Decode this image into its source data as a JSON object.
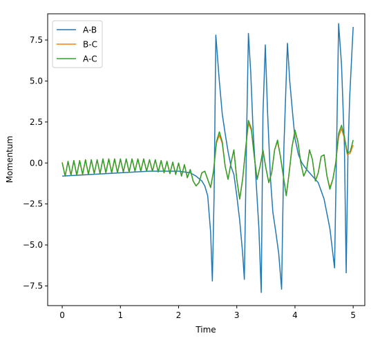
{
  "chart_data": {
    "type": "line",
    "xlabel": "Time",
    "ylabel": "Momentum",
    "xlim": [
      -0.25,
      5.2
    ],
    "ylim": [
      -8.7,
      9.1
    ],
    "xticks": [
      0,
      1,
      2,
      3,
      4,
      5
    ],
    "xtick_labels": [
      "0",
      "1",
      "2",
      "3",
      "4",
      "5"
    ],
    "yticks": [
      -7.5,
      -5.0,
      -2.5,
      0.0,
      2.5,
      5.0,
      7.5
    ],
    "ytick_labels": [
      "−7.5",
      "−5.0",
      "−2.5",
      "0.0",
      "2.5",
      "5.0",
      "7.5"
    ],
    "grid": false,
    "legend_position": "upper-left",
    "legend_order": [
      "A-B",
      "B-C",
      "A-C"
    ],
    "series": [
      {
        "name": "A-B",
        "color": "#1f77b4",
        "x": [
          0,
          0.5,
          1.0,
          1.5,
          2.0,
          2.2,
          2.3,
          2.4,
          2.45,
          2.5,
          2.55,
          2.58,
          2.61,
          2.64,
          2.7,
          2.75,
          2.8,
          2.85,
          2.9,
          2.95,
          3.0,
          3.05,
          3.1,
          3.13,
          3.17,
          3.2,
          3.24,
          3.28,
          3.33,
          3.38,
          3.42,
          3.45,
          3.49,
          3.53,
          3.58,
          3.62,
          3.67,
          3.72,
          3.77,
          3.81,
          3.87,
          3.91,
          3.96,
          4.0,
          4.06,
          4.12,
          4.2,
          4.3,
          4.4,
          4.5,
          4.6,
          4.68,
          4.72,
          4.75,
          4.8,
          4.85,
          4.88,
          4.91,
          4.94,
          5.0
        ],
        "y": [
          -0.8,
          -0.7,
          -0.6,
          -0.5,
          -0.5,
          -0.6,
          -0.8,
          -1.1,
          -1.4,
          -2.0,
          -4.2,
          -7.2,
          -2.0,
          7.8,
          5.0,
          3.0,
          1.8,
          0.7,
          -0.2,
          -0.7,
          -2.0,
          -3.5,
          -5.5,
          -7.1,
          2.0,
          7.9,
          5.5,
          2.0,
          -1.0,
          -4.0,
          -7.9,
          3.0,
          7.2,
          3.0,
          -1.0,
          -3.0,
          -4.2,
          -5.5,
          -7.7,
          1.0,
          7.3,
          5.0,
          3.0,
          1.5,
          0.5,
          0.0,
          -0.4,
          -0.8,
          -1.2,
          -2.2,
          -4.0,
          -6.4,
          2.0,
          8.5,
          6.0,
          1.0,
          -6.7,
          0.5,
          4.0,
          8.3
        ]
      },
      {
        "name": "B-C",
        "color": "#ff7f0e",
        "x": [
          0,
          0.05,
          0.1,
          0.15,
          0.2,
          0.25,
          0.3,
          0.35,
          0.4,
          0.45,
          0.5,
          0.55,
          0.6,
          0.65,
          0.7,
          0.75,
          0.8,
          0.85,
          0.9,
          0.95,
          1.0,
          1.05,
          1.1,
          1.15,
          1.2,
          1.25,
          1.3,
          1.35,
          1.4,
          1.45,
          1.5,
          1.55,
          1.6,
          1.65,
          1.7,
          1.75,
          1.8,
          1.85,
          1.9,
          1.95,
          2.0,
          2.05,
          2.1,
          2.15,
          2.2,
          2.25,
          2.3,
          2.35,
          2.4,
          2.45,
          2.5,
          2.55,
          2.6,
          2.65,
          2.7,
          2.75,
          2.8,
          2.85,
          2.9,
          2.95,
          3.0,
          3.05,
          3.1,
          3.15,
          3.2,
          3.25,
          3.3,
          3.35,
          3.4,
          3.45,
          3.5,
          3.55,
          3.6,
          3.65,
          3.7,
          3.75,
          3.8,
          3.85,
          3.9,
          3.95,
          4.0,
          4.05,
          4.1,
          4.15,
          4.2,
          4.25,
          4.3,
          4.35,
          4.4,
          4.45,
          4.5,
          4.55,
          4.6,
          4.65,
          4.7,
          4.75,
          4.8,
          4.85,
          4.9,
          4.95,
          5.0
        ],
        "y": [
          0.05,
          -0.8,
          0.1,
          -0.75,
          0.15,
          -0.75,
          0.15,
          -0.7,
          0.2,
          -0.7,
          0.2,
          -0.65,
          0.2,
          -0.65,
          0.25,
          -0.6,
          0.25,
          -0.6,
          0.25,
          -0.6,
          0.25,
          -0.55,
          0.25,
          -0.55,
          0.25,
          -0.5,
          0.25,
          -0.5,
          0.25,
          -0.5,
          0.2,
          -0.5,
          0.2,
          -0.55,
          0.15,
          -0.6,
          0.1,
          -0.65,
          0.05,
          -0.7,
          0.0,
          -0.8,
          -0.1,
          -0.9,
          -0.4,
          -1.1,
          -1.4,
          -1.2,
          -0.6,
          -0.5,
          -1.0,
          -1.5,
          -0.5,
          1.2,
          1.7,
          1.2,
          -0.2,
          -1.0,
          0.0,
          0.8,
          -1.0,
          -2.2,
          -1.0,
          0.8,
          2.4,
          2.0,
          0.4,
          -1.0,
          -0.2,
          0.7,
          -0.3,
          -1.2,
          -0.6,
          0.8,
          1.3,
          0.4,
          -0.8,
          -2.0,
          -0.6,
          1.0,
          1.9,
          1.3,
          0.0,
          -0.8,
          -0.4,
          0.8,
          0.2,
          -1.1,
          -0.6,
          0.4,
          0.5,
          -0.8,
          -1.5,
          -1.0,
          0.0,
          1.6,
          2.1,
          1.5,
          0.5,
          0.6,
          1.1
        ]
      },
      {
        "name": "A-C",
        "color": "#2ca02c",
        "x": [
          0,
          0.05,
          0.1,
          0.15,
          0.2,
          0.25,
          0.3,
          0.35,
          0.4,
          0.45,
          0.5,
          0.55,
          0.6,
          0.65,
          0.7,
          0.75,
          0.8,
          0.85,
          0.9,
          0.95,
          1.0,
          1.05,
          1.1,
          1.15,
          1.2,
          1.25,
          1.3,
          1.35,
          1.4,
          1.45,
          1.5,
          1.55,
          1.6,
          1.65,
          1.7,
          1.75,
          1.8,
          1.85,
          1.9,
          1.95,
          2.0,
          2.05,
          2.1,
          2.15,
          2.2,
          2.25,
          2.3,
          2.35,
          2.4,
          2.45,
          2.5,
          2.55,
          2.6,
          2.65,
          2.7,
          2.75,
          2.8,
          2.85,
          2.9,
          2.95,
          3.0,
          3.05,
          3.1,
          3.15,
          3.2,
          3.25,
          3.3,
          3.35,
          3.4,
          3.45,
          3.5,
          3.55,
          3.6,
          3.65,
          3.7,
          3.75,
          3.8,
          3.85,
          3.9,
          3.95,
          4.0,
          4.05,
          4.1,
          4.15,
          4.2,
          4.25,
          4.3,
          4.35,
          4.4,
          4.45,
          4.5,
          4.55,
          4.6,
          4.65,
          4.7,
          4.75,
          4.8,
          4.85,
          4.9,
          4.95,
          5.0
        ],
        "y": [
          0.0,
          -0.8,
          0.1,
          -0.75,
          0.15,
          -0.75,
          0.15,
          -0.7,
          0.2,
          -0.7,
          0.2,
          -0.65,
          0.2,
          -0.65,
          0.25,
          -0.6,
          0.25,
          -0.6,
          0.25,
          -0.6,
          0.25,
          -0.55,
          0.25,
          -0.55,
          0.25,
          -0.5,
          0.25,
          -0.5,
          0.25,
          -0.5,
          0.2,
          -0.5,
          0.2,
          -0.55,
          0.15,
          -0.6,
          0.1,
          -0.65,
          0.05,
          -0.7,
          0.0,
          -0.8,
          -0.1,
          -0.9,
          -0.4,
          -1.1,
          -1.4,
          -1.2,
          -0.6,
          -0.5,
          -1.0,
          -1.5,
          -0.5,
          1.3,
          1.9,
          1.3,
          -0.2,
          -1.0,
          0.0,
          0.8,
          -1.0,
          -2.2,
          -1.0,
          0.8,
          2.6,
          2.1,
          0.4,
          -1.0,
          -0.2,
          0.8,
          -0.3,
          -1.2,
          -0.6,
          0.8,
          1.4,
          0.4,
          -0.8,
          -2.0,
          -0.6,
          1.0,
          2.0,
          1.3,
          0.0,
          -0.8,
          -0.4,
          0.8,
          0.2,
          -1.1,
          -0.6,
          0.4,
          0.5,
          -0.8,
          -1.6,
          -1.0,
          0.0,
          1.8,
          2.3,
          1.6,
          0.6,
          0.7,
          1.4
        ]
      }
    ]
  }
}
